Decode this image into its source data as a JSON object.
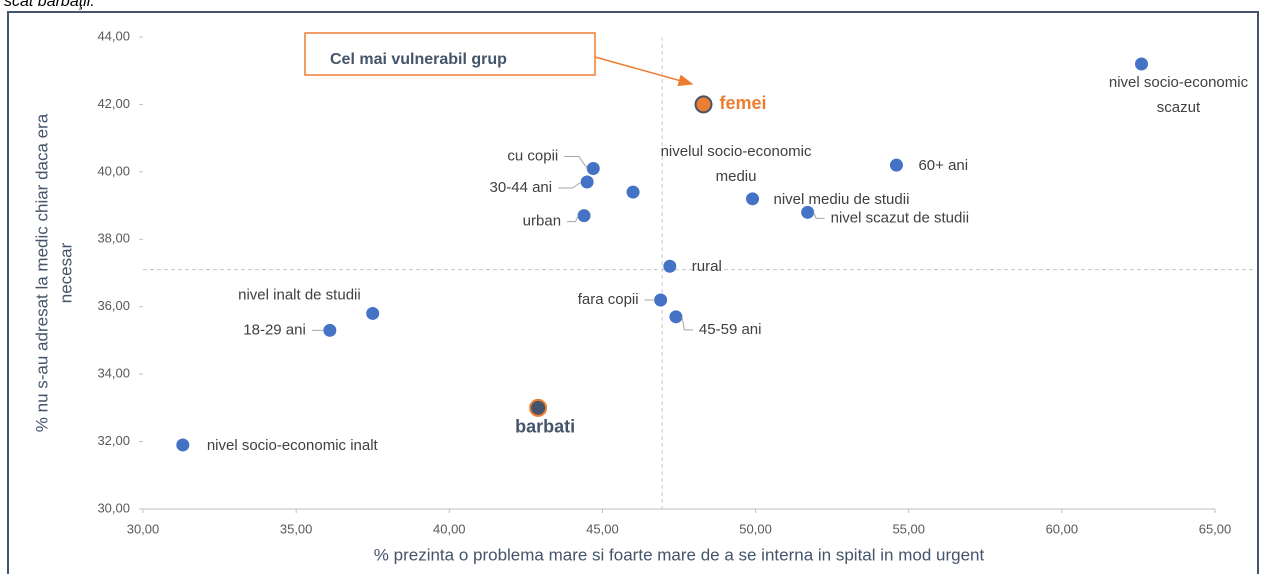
{
  "caption": "scat barbaţii.",
  "chart_data": {
    "type": "scatter",
    "xlabel": "% prezinta o problema mare si foarte mare de a se interna in spital in mod urgent",
    "ylabel": [
      "% nu s-au adresat la medic chiar daca era",
      "necesar"
    ],
    "annotation": "Cel mai vulnerabil grup",
    "xlim": [
      30,
      65
    ],
    "ylim": [
      30,
      44
    ],
    "xticks": [
      {
        "value": 30,
        "label": "30,00"
      },
      {
        "value": 35,
        "label": "35,00"
      },
      {
        "value": 40,
        "label": "40,00"
      },
      {
        "value": 45,
        "label": "45,00"
      },
      {
        "value": 50,
        "label": "50,00"
      },
      {
        "value": 55,
        "label": "55,00"
      },
      {
        "value": 60,
        "label": "60,00"
      },
      {
        "value": 65,
        "label": "65,00"
      }
    ],
    "yticks": [
      {
        "value": 30,
        "label": "30,00"
      },
      {
        "value": 32,
        "label": "32,00"
      },
      {
        "value": 34,
        "label": "34,00"
      },
      {
        "value": 36,
        "label": "36,00"
      },
      {
        "value": 38,
        "label": "38,00"
      },
      {
        "value": 40,
        "label": "40,00"
      },
      {
        "value": 42,
        "label": "42,00"
      },
      {
        "value": 44,
        "label": "44,00"
      }
    ],
    "x_reference": 46.95,
    "y_reference": 37.1,
    "points": [
      {
        "label": [
          "nivel socio-economic",
          "scazut"
        ],
        "x": 62.6,
        "y": 43.2,
        "color": "#4472c4"
      },
      {
        "label": "femei",
        "x": 48.3,
        "y": 42.0,
        "color": "#ed7d31",
        "label_color": "#ed7d31"
      },
      {
        "label": "cu copii",
        "x": 44.7,
        "y": 40.1,
        "color": "#4472c4"
      },
      {
        "label": "30-44 ani",
        "x": 44.5,
        "y": 39.7,
        "color": "#4472c4"
      },
      {
        "label": [
          "nivelul socio-economic",
          "mediu"
        ],
        "x": 46.0,
        "y": 39.4,
        "color": "#4472c4"
      },
      {
        "label": "urban",
        "x": 44.4,
        "y": 38.7,
        "color": "#4472c4"
      },
      {
        "label": "60+ ani",
        "x": 54.6,
        "y": 40.2,
        "color": "#4472c4"
      },
      {
        "label": "nivel mediu de studii",
        "x": 49.9,
        "y": 39.2,
        "color": "#4472c4"
      },
      {
        "label": "nivel scazut de studii",
        "x": 51.7,
        "y": 38.8,
        "color": "#4472c4"
      },
      {
        "label": "rural",
        "x": 47.2,
        "y": 37.2,
        "color": "#4472c4"
      },
      {
        "label": "fara copii",
        "x": 46.9,
        "y": 36.2,
        "color": "#4472c4"
      },
      {
        "label": "45-59 ani",
        "x": 47.4,
        "y": 35.7,
        "color": "#4472c4"
      },
      {
        "label": "nivel inalt de studii",
        "x": 37.5,
        "y": 35.8,
        "color": "#4472c4"
      },
      {
        "label": "18-29 ani",
        "x": 36.1,
        "y": 35.3,
        "color": "#4472c4"
      },
      {
        "label": "barbati",
        "x": 42.9,
        "y": 33.0,
        "color": "#44546a",
        "label_color": "#44546a"
      },
      {
        "label": "nivel socio-economic inalt",
        "x": 31.3,
        "y": 31.9,
        "color": "#4472c4"
      }
    ]
  }
}
